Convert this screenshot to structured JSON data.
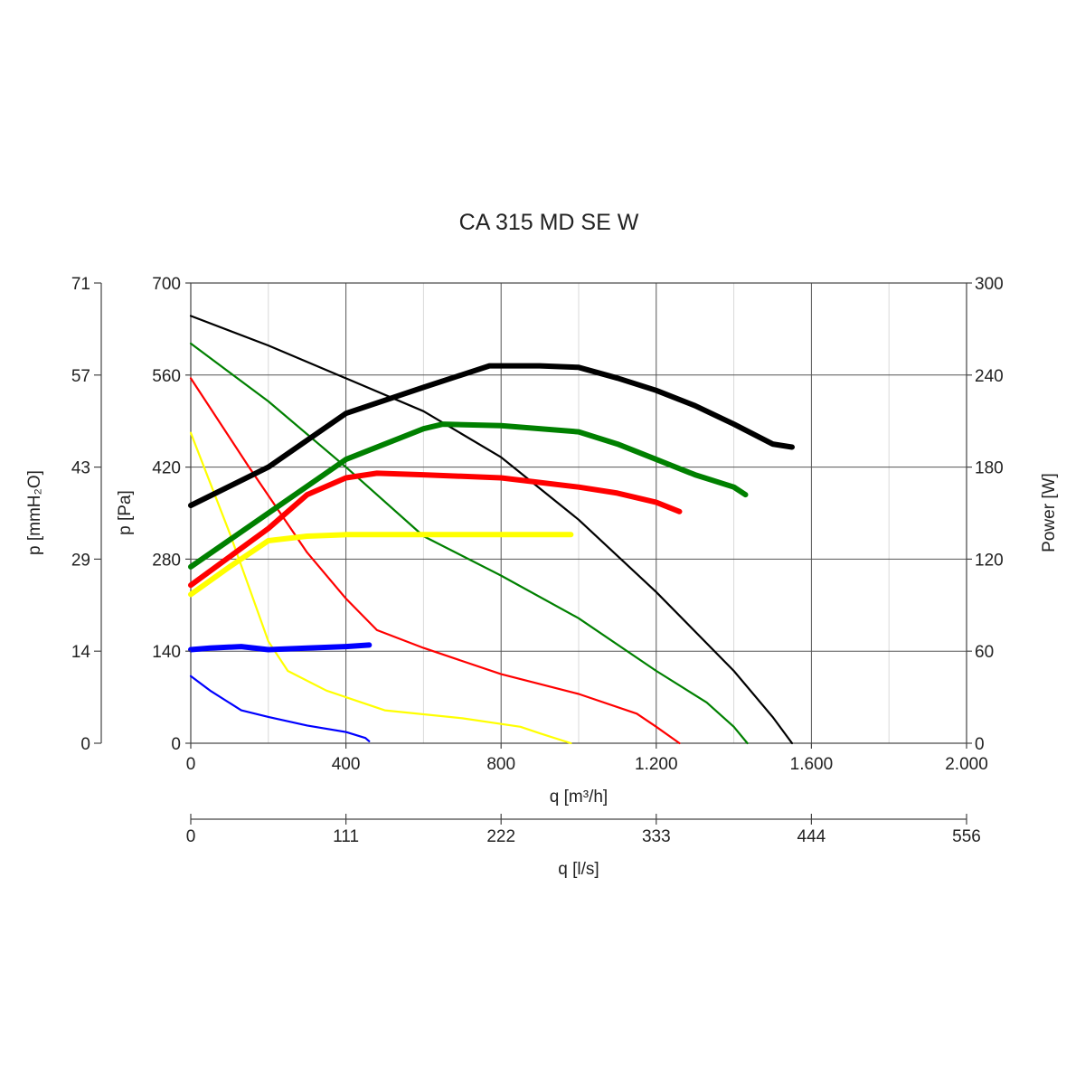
{
  "chart_data": {
    "type": "line",
    "title": "CA 315 MD SE W",
    "x_axis": {
      "label": "q [m³/h]",
      "lim": [
        0,
        2000
      ],
      "ticks": [
        0,
        400,
        800,
        1200,
        1600,
        2000
      ],
      "tick_labels": [
        "0",
        "400",
        "800",
        "1.200",
        "1.600",
        "2.000"
      ]
    },
    "x2_axis": {
      "label": "q [l/s]",
      "tick_labels": [
        "0",
        "111",
        "222",
        "333",
        "444",
        "556"
      ]
    },
    "y_left_axis": {
      "label": "p [Pa]",
      "lim": [
        0,
        700
      ],
      "ticks": [
        0,
        140,
        280,
        420,
        560,
        700
      ],
      "tick_labels": [
        "0",
        "140",
        "280",
        "420",
        "560",
        "700"
      ]
    },
    "y_left2_axis": {
      "label": "p [mmH₂O]",
      "tick_labels": [
        "0",
        "14",
        "29",
        "43",
        "57",
        "71"
      ]
    },
    "y_right_axis": {
      "label": "Power [W]",
      "lim": [
        0,
        300
      ],
      "ticks": [
        0,
        60,
        120,
        180,
        240,
        300
      ],
      "tick_labels": [
        "0",
        "60",
        "120",
        "180",
        "240",
        "300"
      ]
    },
    "grid": true,
    "minor_x_gridlines": 200,
    "series": [
      {
        "color": "#000000",
        "kind": "pressure",
        "axis": "left",
        "x": [
          0,
          200,
          400,
          600,
          800,
          1000,
          1200,
          1400,
          1500,
          1550
        ],
        "y": [
          650,
          605,
          555,
          505,
          435,
          340,
          230,
          110,
          40,
          0
        ]
      },
      {
        "color": "#008000",
        "kind": "pressure",
        "axis": "left",
        "x": [
          0,
          200,
          400,
          600,
          800,
          1000,
          1200,
          1330,
          1400,
          1435
        ],
        "y": [
          608,
          520,
          420,
          315,
          255,
          190,
          110,
          62,
          25,
          0
        ]
      },
      {
        "color": "#ff0000",
        "kind": "pressure",
        "axis": "left",
        "x": [
          0,
          150,
          300,
          400,
          480,
          600,
          800,
          1000,
          1150,
          1200,
          1260
        ],
        "y": [
          555,
          420,
          290,
          220,
          172,
          145,
          105,
          75,
          45,
          25,
          0
        ]
      },
      {
        "color": "#ffff00",
        "kind": "pressure",
        "axis": "left",
        "x": [
          0,
          100,
          200,
          250,
          350,
          500,
          700,
          850,
          900,
          980
        ],
        "y": [
          472,
          320,
          155,
          110,
          80,
          50,
          38,
          25,
          15,
          0
        ]
      },
      {
        "color": "#0000ff",
        "kind": "pressure",
        "axis": "left",
        "x": [
          0,
          50,
          130,
          200,
          300,
          400,
          450,
          460
        ],
        "y": [
          102,
          80,
          50,
          40,
          27,
          17,
          8,
          3
        ]
      },
      {
        "color": "#000000",
        "kind": "power",
        "axis": "right",
        "x": [
          0,
          200,
          400,
          600,
          770,
          900,
          1000,
          1100,
          1200,
          1300,
          1400,
          1500,
          1550
        ],
        "y": [
          155,
          180,
          215,
          232,
          246,
          246,
          245,
          238,
          230,
          220,
          208,
          195,
          193
        ]
      },
      {
        "color": "#008000",
        "kind": "power",
        "axis": "right",
        "x": [
          0,
          200,
          400,
          600,
          650,
          800,
          1000,
          1100,
          1200,
          1300,
          1400,
          1430
        ],
        "y": [
          115,
          150,
          185,
          205,
          208,
          207,
          203,
          195,
          185,
          175,
          167,
          162
        ]
      },
      {
        "color": "#ff0000",
        "kind": "power",
        "axis": "right",
        "x": [
          0,
          200,
          300,
          400,
          480,
          600,
          800,
          1000,
          1100,
          1200,
          1260
        ],
        "y": [
          103,
          140,
          162,
          173,
          176,
          175,
          173,
          167,
          163,
          157,
          151
        ]
      },
      {
        "color": "#ffff00",
        "kind": "power",
        "axis": "right",
        "x": [
          0,
          100,
          200,
          300,
          400,
          600,
          800,
          980
        ],
        "y": [
          97,
          115,
          132,
          135,
          136,
          136,
          136,
          136
        ]
      },
      {
        "color": "#0000ff",
        "kind": "power",
        "axis": "right",
        "x": [
          0,
          50,
          130,
          200,
          300,
          400,
          460
        ],
        "y": [
          61,
          62,
          63,
          61,
          62,
          63,
          64
        ]
      }
    ]
  }
}
